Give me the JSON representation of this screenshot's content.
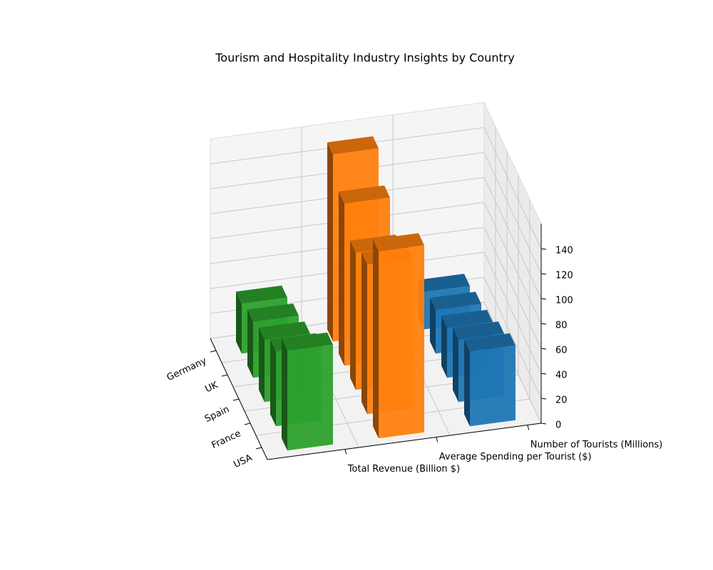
{
  "chart_data": {
    "type": "bar3d",
    "title": "Tourism and Hospitality Industry Insights by Country",
    "categories": [
      "Germany",
      "UK",
      "Spain",
      "France",
      "USA"
    ],
    "series": [
      {
        "name": "Total Revenue (Billion $)",
        "color": "#2ca02c",
        "values": [
          40,
          45,
          50,
          60,
          80
        ]
      },
      {
        "name": "Average Spending per Tourist ($)",
        "color": "#ff7f0e",
        "values": [
          150,
          130,
          110,
          120,
          150
        ]
      },
      {
        "name": "Number of Tourists (Millions)",
        "color": "#1f77b4",
        "values": [
          30,
          35,
          40,
          50,
          60
        ]
      }
    ],
    "zlim": [
      0,
      160
    ],
    "zticks": [
      0,
      20,
      40,
      60,
      80,
      100,
      120,
      140
    ],
    "grid": true
  }
}
